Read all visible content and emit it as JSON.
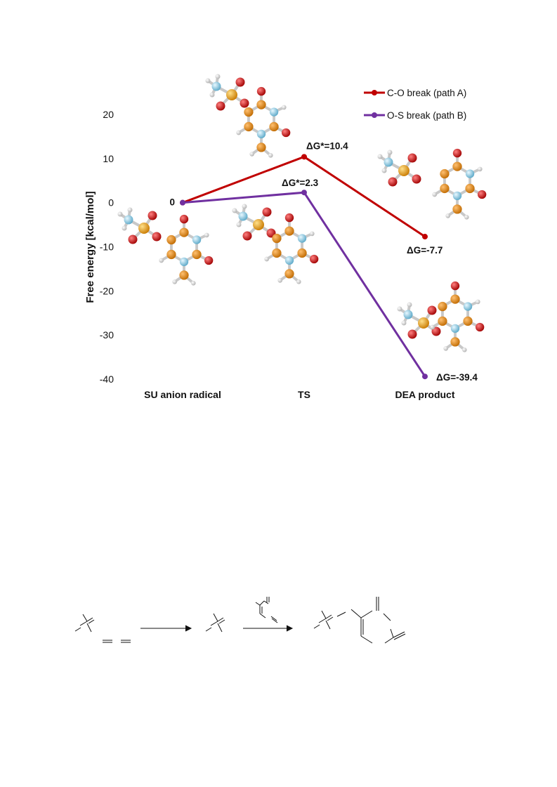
{
  "chart_data": {
    "type": "line",
    "ylabel": "Free energy [kcal/mol]",
    "xlabel": "",
    "categories": [
      "SU anion radical",
      "TS",
      "DEA product"
    ],
    "ylim": [
      -40,
      20
    ],
    "yticks": [
      20,
      10,
      0,
      -10,
      -20,
      -30,
      -40
    ],
    "grid": false,
    "legend_position": "top-right",
    "series": [
      {
        "name": "C-O break (path A)",
        "color": "#c00000",
        "values": [
          0,
          10.4,
          -7.7
        ]
      },
      {
        "name": "O-S break (path B)",
        "color": "#7030a0",
        "values": [
          0,
          2.3,
          -39.4
        ]
      }
    ],
    "annotations": [
      {
        "text": "0",
        "series": 0,
        "index": 0
      },
      {
        "text": "ΔG*=10.4",
        "series": 0,
        "index": 1
      },
      {
        "text": "ΔG*=2.3",
        "series": 1,
        "index": 1
      },
      {
        "text": "ΔG=-7.7",
        "series": 0,
        "index": 2
      },
      {
        "text": "ΔG=-39.4",
        "series": 1,
        "index": 2
      }
    ]
  },
  "molecule_colors": {
    "sulfur": "#e8a018",
    "carbon": "#e8901a",
    "nitrogen": "#8ecfe8",
    "oxygen": "#d41818",
    "hydrogen": "#eeeeee",
    "bond": "#c8c8c8"
  }
}
